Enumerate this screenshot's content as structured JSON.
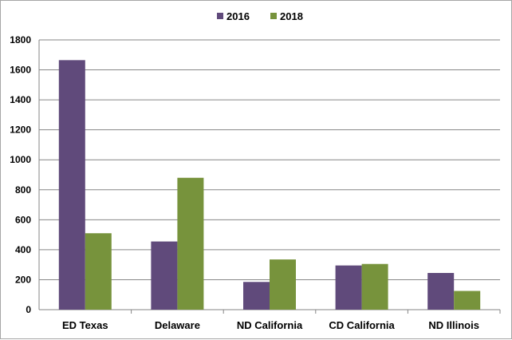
{
  "chart_data": {
    "type": "bar",
    "categories": [
      "ED Texas",
      "Delaware",
      "ND California",
      "CD California",
      "ND Illinois"
    ],
    "series": [
      {
        "name": "2016",
        "color": "#604a7b",
        "values": [
          1665,
          455,
          185,
          295,
          245
        ]
      },
      {
        "name": "2018",
        "color": "#77933c",
        "values": [
          510,
          880,
          335,
          305,
          125
        ]
      }
    ],
    "yticks": [
      0,
      200,
      400,
      600,
      800,
      1000,
      1200,
      1400,
      1600,
      1800
    ],
    "ylim": [
      0,
      1800
    ],
    "grid": true,
    "legend_position": "top-center",
    "gridline_color": "#868686"
  }
}
